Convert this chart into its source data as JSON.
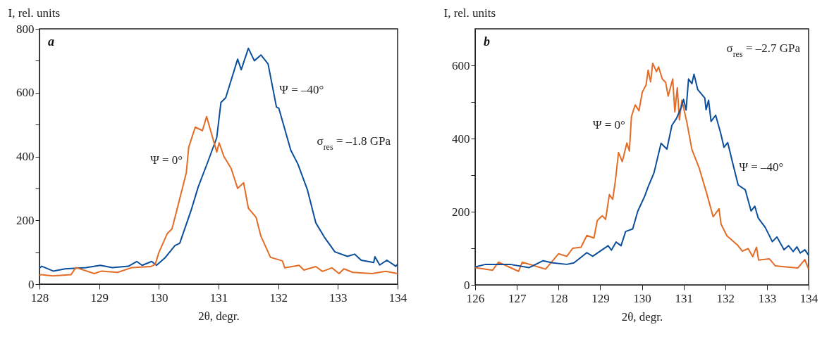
{
  "chart_data": [
    {
      "type": "line",
      "title": "a",
      "xlabel": "2θ, degr.",
      "ylabel": "I, rel. units",
      "xlim": [
        128,
        134
      ],
      "ylim": [
        0,
        800
      ],
      "xticks": [
        128,
        129,
        130,
        131,
        132,
        133,
        134
      ],
      "yticks": [
        0,
        {
          "value": 100,
          "label": null
        },
        200,
        {
          "value": 300,
          "label": null
        },
        400,
        {
          "value": 500,
          "label": null
        },
        600,
        {
          "value": 700,
          "label": null
        },
        800
      ],
      "grid": false,
      "marker": "none",
      "line_style": "solid",
      "annotations": [
        "σ$_{res}$ = –1.8 GPa"
      ],
      "series": [
        {
          "name": "Ψ = –40°",
          "color": "#0b4f9c",
          "x": [
            128,
            128.04,
            128.23,
            128.43,
            128.78,
            129.02,
            129.22,
            129.49,
            129.63,
            129.72,
            129.88,
            129.96,
            130.11,
            130.27,
            130.35,
            130.54,
            130.66,
            130.81,
            130.97,
            131.04,
            131.12,
            131.32,
            131.38,
            131.5,
            131.6,
            131.71,
            131.83,
            131.97,
            132.01,
            132.21,
            132.33,
            132.49,
            132.63,
            132.77,
            132.95,
            133.16,
            133.28,
            133.39,
            133.6,
            133.62,
            133.7,
            133.82,
            133.97,
            134
          ],
          "values": [
            50,
            56,
            41,
            48,
            52,
            59,
            52,
            56,
            71,
            59,
            71,
            59,
            84,
            121,
            128,
            231,
            305,
            378,
            459,
            569,
            584,
            705,
            672,
            739,
            700,
            718,
            690,
            555,
            551,
            420,
            376,
            295,
            192,
            148,
            101,
            87,
            94,
            75,
            68,
            86,
            60,
            75,
            56,
            63
          ]
        },
        {
          "name": "Ψ = 0°",
          "color": "#e36c26",
          "x": [
            128,
            128.03,
            128.22,
            128.53,
            128.61,
            128.92,
            129.04,
            129.31,
            129.55,
            129.86,
            129.94,
            130,
            130.14,
            130.22,
            130.3,
            130.38,
            130.46,
            130.5,
            130.61,
            130.73,
            130.8,
            130.89,
            130.97,
            131.01,
            131.09,
            131.21,
            131.32,
            131.42,
            131.5,
            131.63,
            131.71,
            131.87,
            132.07,
            132.11,
            132.35,
            132.43,
            132.63,
            132.74,
            132.9,
            133.02,
            133.1,
            133.25,
            133.57,
            133.8,
            134
          ],
          "values": [
            28,
            30,
            26,
            30,
            52,
            33,
            41,
            37,
            52,
            55,
            62,
            99,
            158,
            173,
            231,
            290,
            349,
            429,
            492,
            481,
            525,
            466,
            414,
            443,
            400,
            363,
            300,
            318,
            238,
            209,
            150,
            84,
            73,
            51,
            59,
            44,
            55,
            40,
            51,
            33,
            48,
            37,
            33,
            40,
            33
          ]
        }
      ]
    },
    {
      "type": "line",
      "title": "b",
      "xlabel": "2θ, degr.",
      "ylabel": "I, rel. units",
      "xlim": [
        126,
        134
      ],
      "ylim": [
        0,
        700
      ],
      "xticks": [
        126,
        127,
        128,
        129,
        130,
        131,
        132,
        133,
        134
      ],
      "yticks": [
        0,
        {
          "value": 100,
          "label": null
        },
        200,
        {
          "value": 300,
          "label": null
        },
        400,
        {
          "value": 500,
          "label": null
        },
        600
      ],
      "grid": false,
      "marker": "none",
      "line_style": "solid",
      "annotations": [
        "σ$_{res}$ = –2.7 GPa"
      ],
      "series": [
        {
          "name": "Ψ = 0°",
          "color": "#e36c26",
          "x": [
            126,
            126.42,
            126.56,
            127.04,
            127.13,
            127.69,
            128,
            128.2,
            128.34,
            128.54,
            128.68,
            128.85,
            128.93,
            129.05,
            129.13,
            129.22,
            129.3,
            129.36,
            129.44,
            129.53,
            129.64,
            129.7,
            129.75,
            129.84,
            129.93,
            130.01,
            130.1,
            130.15,
            130.21,
            130.26,
            130.35,
            130.4,
            130.49,
            130.57,
            130.63,
            130.74,
            130.79,
            130.85,
            130.9,
            130.96,
            131.08,
            131.2,
            131.37,
            131.54,
            131.71,
            131.85,
            131.9,
            132.04,
            132.3,
            132.41,
            132.55,
            132.66,
            132.75,
            132.8,
            133.06,
            133.2,
            133.45,
            133.74,
            133.91,
            134
          ],
          "values": [
            47,
            40,
            62,
            37,
            62,
            43,
            85,
            78,
            100,
            103,
            135,
            128,
            176,
            189,
            179,
            247,
            234,
            281,
            362,
            337,
            388,
            366,
            460,
            492,
            476,
            527,
            546,
            587,
            555,
            606,
            583,
            596,
            563,
            554,
            516,
            563,
            473,
            539,
            451,
            505,
            444,
            370,
            321,
            256,
            186,
            208,
            166,
            134,
            108,
            92,
            99,
            77,
            103,
            68,
            71,
            52,
            49,
            46,
            69,
            43
          ]
        },
        {
          "name": "Ψ = –40°",
          "color": "#0b4f9c",
          "x": [
            126,
            126.25,
            126.84,
            127.29,
            127.63,
            127.86,
            128.2,
            128.37,
            128.68,
            128.82,
            129.19,
            129.27,
            129.38,
            129.5,
            129.61,
            129.78,
            129.9,
            130.07,
            130.15,
            130.29,
            130.46,
            130.6,
            130.72,
            130.83,
            130.94,
            131,
            131.06,
            131.12,
            131.2,
            131.25,
            131.34,
            131.51,
            131.54,
            131.6,
            131.66,
            131.77,
            131.89,
            131.97,
            132.06,
            132.17,
            132.31,
            132.48,
            132.62,
            132.71,
            132.79,
            132.96,
            133.13,
            133.24,
            133.41,
            133.52,
            133.63,
            133.72,
            133.8,
            133.91,
            134
          ],
          "values": [
            49,
            56,
            56,
            47,
            66,
            60,
            56,
            60,
            88,
            78,
            107,
            95,
            117,
            107,
            146,
            153,
            201,
            243,
            268,
            306,
            387,
            371,
            436,
            455,
            484,
            507,
            478,
            563,
            550,
            576,
            534,
            511,
            479,
            505,
            447,
            464,
            415,
            376,
            389,
            337,
            273,
            260,
            202,
            215,
            183,
            157,
            118,
            131,
            96,
            107,
            91,
            104,
            87,
            96,
            81
          ]
        }
      ]
    }
  ]
}
